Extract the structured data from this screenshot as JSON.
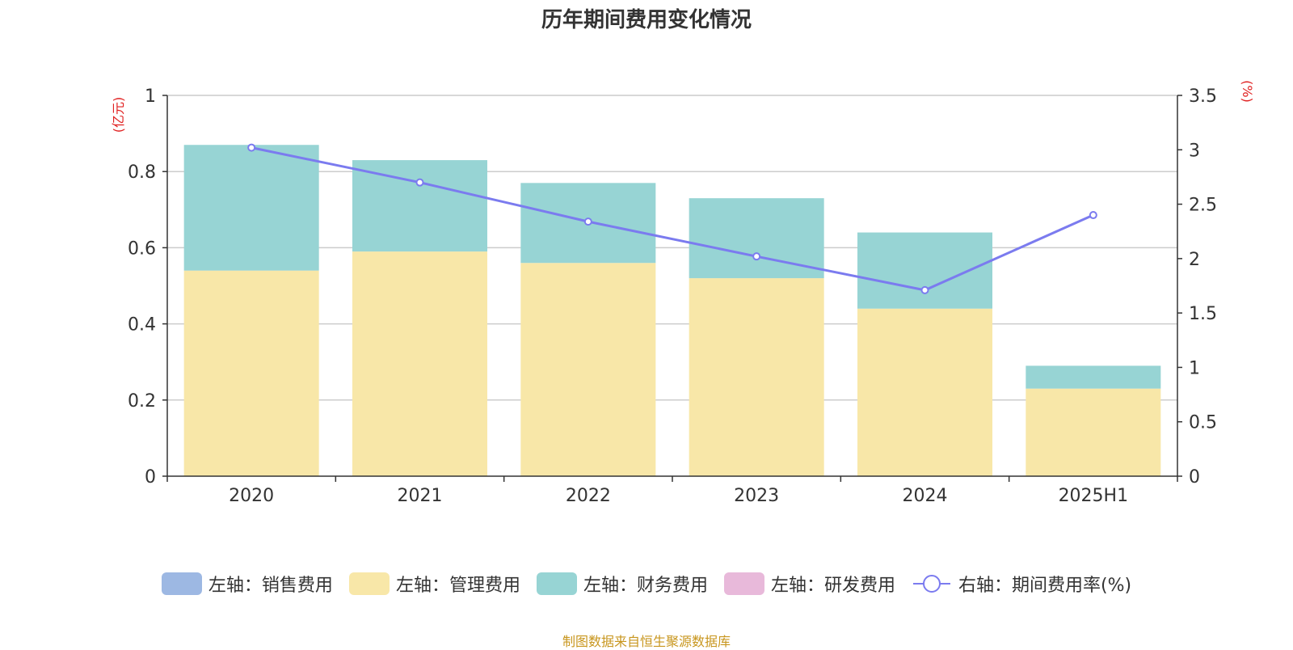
{
  "chart_data": {
    "type": "bar",
    "title": "历年期间费用变化情况",
    "categories": [
      "2020",
      "2021",
      "2022",
      "2023",
      "2024",
      "2025H1"
    ],
    "left_axis": {
      "unit_label": "(亿元)",
      "ylim": [
        0,
        1
      ],
      "ticks": [
        "0",
        "0.2",
        "0.4",
        "0.6",
        "0.8",
        "1"
      ]
    },
    "right_axis": {
      "unit_label": "(%)",
      "ylim": [
        0,
        3.5
      ],
      "ticks": [
        "0",
        "0.5",
        "1",
        "1.5",
        "2",
        "2.5",
        "3",
        "3.5"
      ]
    },
    "series": [
      {
        "name": "左轴：销售费用",
        "type": "bar",
        "stack": "left",
        "color": "#9db8e3",
        "values": [
          0,
          0,
          0,
          0,
          0,
          0
        ]
      },
      {
        "name": "左轴：管理费用",
        "type": "bar",
        "stack": "left",
        "color": "#f8e7a8",
        "values": [
          0.54,
          0.59,
          0.56,
          0.52,
          0.44,
          0.23
        ]
      },
      {
        "name": "左轴：财务费用",
        "type": "bar",
        "stack": "left",
        "color": "#97d4d4",
        "values": [
          0.33,
          0.24,
          0.21,
          0.21,
          0.2,
          0.06
        ]
      },
      {
        "name": "左轴：研发费用",
        "type": "bar",
        "stack": "left",
        "color": "#e8b9da",
        "values": [
          0,
          0,
          0,
          0,
          0,
          0
        ]
      },
      {
        "name": "右轴：期间费用率(%)",
        "type": "line",
        "axis": "right",
        "color": "#7b7bef",
        "values": [
          3.02,
          2.7,
          2.34,
          2.02,
          1.71,
          2.4
        ]
      }
    ],
    "grid": true,
    "legend": "bottom"
  },
  "source_note": "制图数据来自恒生聚源数据库"
}
